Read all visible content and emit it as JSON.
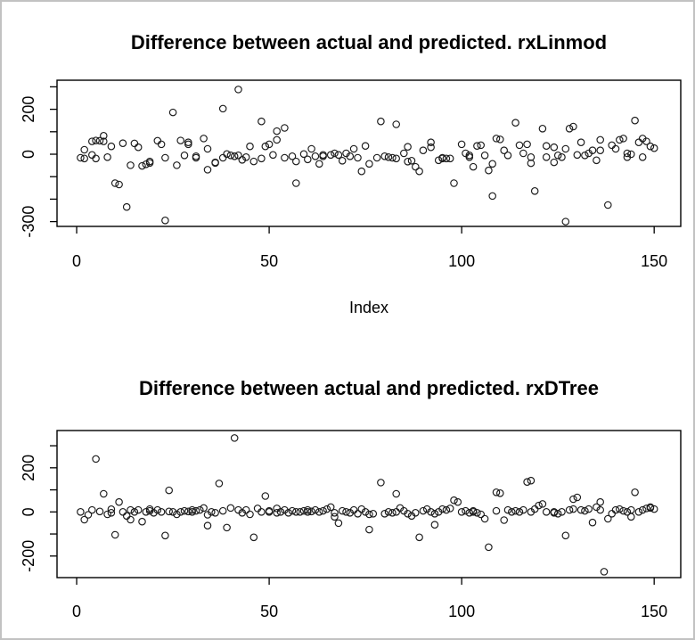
{
  "window": {
    "background": "#ffffff",
    "border_color": "#c2c2c2",
    "foreground": "#000000"
  },
  "chart_data": [
    {
      "type": "scatter",
      "title": "Difference between actual and predicted. rxLinmod",
      "xlabel": "Index",
      "ylabel": "",
      "marker": "open-circle",
      "grid": false,
      "xlim": [
        -5.1,
        156.9
      ],
      "ylim": [
        -321.4,
        329.4
      ],
      "x_tick_values": [
        0,
        50,
        100,
        150
      ],
      "x_tick_labels": [
        "0",
        "50",
        "100",
        "150"
      ],
      "y_tick_values": [
        300,
        200,
        100,
        0,
        -100,
        -200,
        -300
      ],
      "y_tick_labels": [
        "",
        "200",
        "",
        "0",
        "",
        "",
        "-300"
      ],
      "x": [
        1,
        2,
        2,
        4,
        4,
        5,
        5,
        6,
        7,
        7,
        8,
        9,
        10,
        11,
        12,
        13,
        14,
        15,
        16,
        17,
        18,
        19,
        19,
        21,
        22,
        23,
        23,
        25,
        26,
        27,
        28,
        29,
        29,
        31,
        31,
        33,
        34,
        34,
        36,
        36,
        38,
        38,
        39,
        40,
        41,
        42,
        42,
        43,
        44,
        45,
        46,
        48,
        48,
        49,
        50,
        51,
        52,
        52,
        54,
        54,
        56,
        57,
        57,
        59,
        60,
        61,
        62,
        63,
        64,
        64,
        66,
        67,
        68,
        69,
        70,
        71,
        72,
        73,
        74,
        75,
        76,
        78,
        79,
        80,
        81,
        82,
        83,
        83,
        85,
        86,
        86,
        87,
        88,
        89,
        90,
        92,
        92,
        94,
        95,
        95,
        96,
        97,
        98,
        100,
        101,
        102,
        102,
        103,
        104,
        105,
        106,
        107,
        108,
        108,
        109,
        110,
        111,
        112,
        114,
        115,
        116,
        117,
        118,
        118,
        119,
        121,
        122,
        122,
        124,
        124,
        125,
        126,
        127,
        127,
        128,
        129,
        130,
        131,
        132,
        133,
        134,
        135,
        136,
        136,
        138,
        139,
        140,
        141,
        142,
        143,
        143,
        144,
        145,
        146,
        147,
        147,
        148,
        149,
        150
      ],
      "y": [
        -16,
        20,
        -19,
        57,
        -3,
        61,
        -19,
        60,
        82,
        57,
        -13,
        35,
        -129,
        -135,
        49,
        -235,
        -49,
        48,
        31,
        -52,
        -45,
        -32,
        -39,
        60,
        44,
        -295,
        -16,
        186,
        -49,
        61,
        -5,
        53,
        44,
        -9,
        -16,
        70,
        -69,
        24,
        -36,
        -39,
        203,
        -16,
        1,
        -5,
        -9,
        288,
        -5,
        -25,
        -13,
        35,
        -32,
        146,
        -19,
        35,
        44,
        -3,
        64,
        103,
        -16,
        117,
        -9,
        -32,
        -129,
        1,
        -23,
        24,
        -9,
        -43,
        -9,
        -3,
        -3,
        4,
        -3,
        -29,
        4,
        -9,
        24,
        -16,
        -76,
        37,
        -43,
        -16,
        146,
        -9,
        -13,
        -16,
        133,
        -19,
        4,
        -33,
        33,
        -29,
        -56,
        -76,
        17,
        53,
        31,
        -27,
        -19,
        -16,
        -19,
        -19,
        -129,
        44,
        4,
        -5,
        -13,
        -56,
        37,
        40,
        -5,
        -72,
        -186,
        -43,
        70,
        66,
        17,
        -5,
        140,
        40,
        4,
        44,
        -13,
        -40,
        -164,
        114,
        37,
        -13,
        31,
        -36,
        -5,
        -13,
        -300,
        24,
        114,
        123,
        -3,
        53,
        -5,
        4,
        17,
        -27,
        64,
        17,
        -226,
        40,
        24,
        64,
        70,
        -13,
        4,
        0,
        150,
        53,
        70,
        -13,
        57,
        35,
        27
      ]
    },
    {
      "type": "scatter",
      "title": "Difference between actual and predicted. rxDTree",
      "xlabel": "",
      "ylabel": "",
      "marker": "open-circle",
      "grid": false,
      "xlim": [
        -5.1,
        156.9
      ],
      "ylim": [
        -297.8,
        369.0
      ],
      "x_tick_values": [
        0,
        50,
        100,
        150
      ],
      "x_tick_labels": [
        "0",
        "50",
        "100",
        "150"
      ],
      "y_tick_values": [
        300,
        200,
        100,
        0,
        -100,
        -200
      ],
      "y_tick_labels": [
        "",
        "200",
        "",
        "0",
        "",
        "-200"
      ],
      "x": [
        1,
        2,
        3,
        4,
        5,
        6,
        7,
        8,
        9,
        9,
        10,
        11,
        12,
        13,
        14,
        14,
        15,
        16,
        17,
        18,
        19,
        19,
        20,
        21,
        22,
        23,
        24,
        24,
        25,
        26,
        27,
        28,
        29,
        30,
        30,
        31,
        32,
        33,
        34,
        34,
        35,
        36,
        37,
        38,
        39,
        40,
        41,
        42,
        43,
        44,
        45,
        46,
        47,
        48,
        49,
        50,
        50,
        52,
        52,
        53,
        54,
        55,
        56,
        57,
        58,
        59,
        60,
        60,
        61,
        62,
        63,
        64,
        65,
        66,
        67,
        67,
        68,
        69,
        70,
        71,
        72,
        73,
        74,
        75,
        76,
        76,
        77,
        79,
        80,
        81,
        82,
        83,
        83,
        84,
        85,
        86,
        87,
        88,
        89,
        90,
        91,
        92,
        93,
        93,
        94,
        95,
        96,
        97,
        98,
        99,
        100,
        101,
        102,
        103,
        103,
        104,
        105,
        106,
        107,
        109,
        109,
        110,
        111,
        112,
        113,
        114,
        115,
        116,
        117,
        118,
        118,
        119,
        120,
        121,
        122,
        124,
        124,
        125,
        126,
        127,
        128,
        129,
        129,
        130,
        131,
        132,
        133,
        134,
        135,
        136,
        136,
        137,
        138,
        139,
        140,
        141,
        142,
        143,
        144,
        144,
        145,
        146,
        147,
        148,
        149,
        149,
        150
      ],
      "y": [
        0,
        -35,
        -13,
        9,
        240,
        2,
        82,
        -11,
        12,
        -4,
        -104,
        45,
        0,
        -18,
        9,
        -35,
        0,
        9,
        -44,
        0,
        5,
        13,
        -4,
        9,
        0,
        -107,
        2,
        98,
        0,
        -11,
        0,
        5,
        2,
        0,
        9,
        5,
        9,
        18,
        -62,
        -13,
        0,
        -4,
        129,
        5,
        -71,
        18,
        335,
        9,
        -4,
        9,
        -11,
        -115,
        16,
        0,
        72,
        0,
        5,
        -4,
        16,
        0,
        9,
        -4,
        5,
        0,
        0,
        5,
        9,
        0,
        2,
        9,
        0,
        5,
        13,
        22,
        -4,
        -22,
        -51,
        5,
        0,
        -4,
        9,
        -8,
        13,
        0,
        -80,
        -11,
        -8,
        133,
        -8,
        0,
        -4,
        82,
        0,
        18,
        5,
        -8,
        -18,
        -4,
        -115,
        5,
        13,
        0,
        -58,
        -8,
        0,
        13,
        9,
        16,
        53,
        45,
        0,
        5,
        -4,
        0,
        5,
        -4,
        -11,
        -31,
        -160,
        5,
        89,
        85,
        -37,
        9,
        0,
        5,
        0,
        9,
        136,
        142,
        0,
        13,
        29,
        36,
        0,
        -4,
        0,
        -8,
        0,
        -107,
        9,
        58,
        13,
        66,
        9,
        5,
        13,
        -48,
        22,
        45,
        9,
        -271,
        -31,
        -8,
        9,
        13,
        5,
        0,
        -22,
        9,
        89,
        0,
        9,
        16,
        22,
        18,
        13
      ]
    }
  ]
}
